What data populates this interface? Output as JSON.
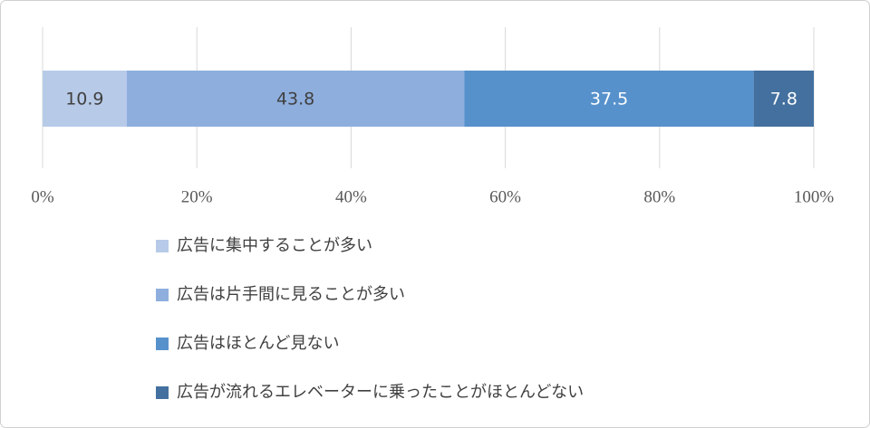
{
  "chart_data": {
    "type": "stacked-bar-horizontal",
    "series": [
      {
        "name": "広告に集中することが多い",
        "color": "#b7cbe8",
        "label_color": "#404040",
        "values": [
          10.9
        ]
      },
      {
        "name": "広告は片手間に見ることが多い",
        "color": "#8eafde",
        "label_color": "#404040",
        "values": [
          43.8
        ]
      },
      {
        "name": "広告はほとんど見ない",
        "color": "#5791cb",
        "label_color": "#ffffff",
        "values": [
          37.5
        ]
      },
      {
        "name": "広告が流れるエレベーターに乗ったことがほとんどない",
        "color": "#43709f",
        "label_color": "#ffffff",
        "values": [
          7.8
        ]
      }
    ],
    "xlim": [
      0,
      100
    ],
    "xticks": [
      {
        "value": 0,
        "label": "0%"
      },
      {
        "value": 20,
        "label": "20%"
      },
      {
        "value": 40,
        "label": "40%"
      },
      {
        "value": 60,
        "label": "60%"
      },
      {
        "value": 80,
        "label": "80%"
      },
      {
        "value": 100,
        "label": "100%"
      }
    ],
    "grid": true
  }
}
